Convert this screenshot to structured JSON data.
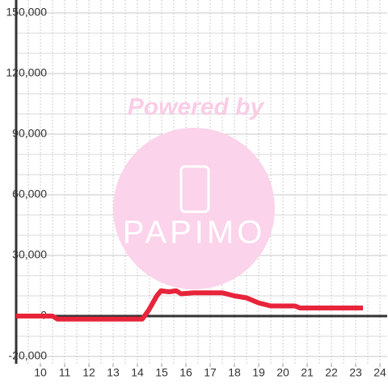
{
  "chart_data": {
    "type": "line",
    "watermark": {
      "title": "Powered by",
      "logo": "PAPIMO"
    },
    "x": [
      9,
      10.5,
      10.7,
      14.2,
      14.47,
      14.8,
      14.97,
      15.3,
      15.6,
      15.8,
      16.3,
      17.5,
      18.0,
      18.5,
      19.0,
      19.5,
      20.5,
      20.7,
      23.3
    ],
    "series": [
      {
        "color": "#e8243a",
        "values": [
          0,
          0,
          -1500,
          -1500,
          3000,
          10000,
          12500,
          12000,
          12500,
          11000,
          11500,
          11500,
          10000,
          9000,
          6500,
          5000,
          5000,
          4000,
          4000
        ]
      }
    ],
    "xlim": [
      9,
      24.3
    ],
    "xticks": [
      10,
      11,
      12,
      13,
      14,
      15,
      16,
      17,
      18,
      19,
      20,
      21,
      22,
      23,
      24
    ],
    "ylim": [
      -20000,
      150000
    ],
    "yticks": [
      {
        "value": -20000,
        "label": "-20,000"
      },
      0,
      {
        "value": 30000,
        "label": "30,000"
      },
      {
        "value": 60000,
        "label": "60,000"
      },
      {
        "value": 90000,
        "label": "90,000"
      },
      {
        "value": 120000,
        "label": "120,000"
      },
      {
        "value": 150000,
        "label": "150,000"
      }
    ],
    "grid": true
  }
}
